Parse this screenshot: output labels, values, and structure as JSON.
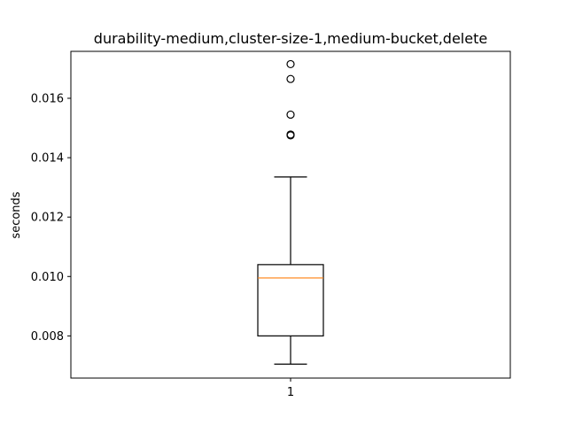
{
  "chart_data": {
    "type": "box",
    "title": "durability-medium,cluster-size-1,medium-bucket,delete",
    "xlabel": "",
    "ylabel": "seconds",
    "ylim": [
      0.00658,
      0.01758
    ],
    "yticks": [
      0.008,
      0.01,
      0.012,
      0.014,
      0.016
    ],
    "ytick_labels": [
      "0.008",
      "0.010",
      "0.012",
      "0.014",
      "0.016"
    ],
    "categories": [
      "1"
    ],
    "grid": false,
    "boxes": [
      {
        "category": "1",
        "whisker_low": 0.00705,
        "q1": 0.008,
        "median": 0.00995,
        "q3": 0.0104,
        "whisker_high": 0.01335,
        "outliers": [
          0.01715,
          0.01665,
          0.01545,
          0.01478,
          0.01475
        ]
      }
    ],
    "colors": {
      "box": "#000000",
      "median": "#ff7f0e",
      "outlier": "#000000"
    }
  }
}
